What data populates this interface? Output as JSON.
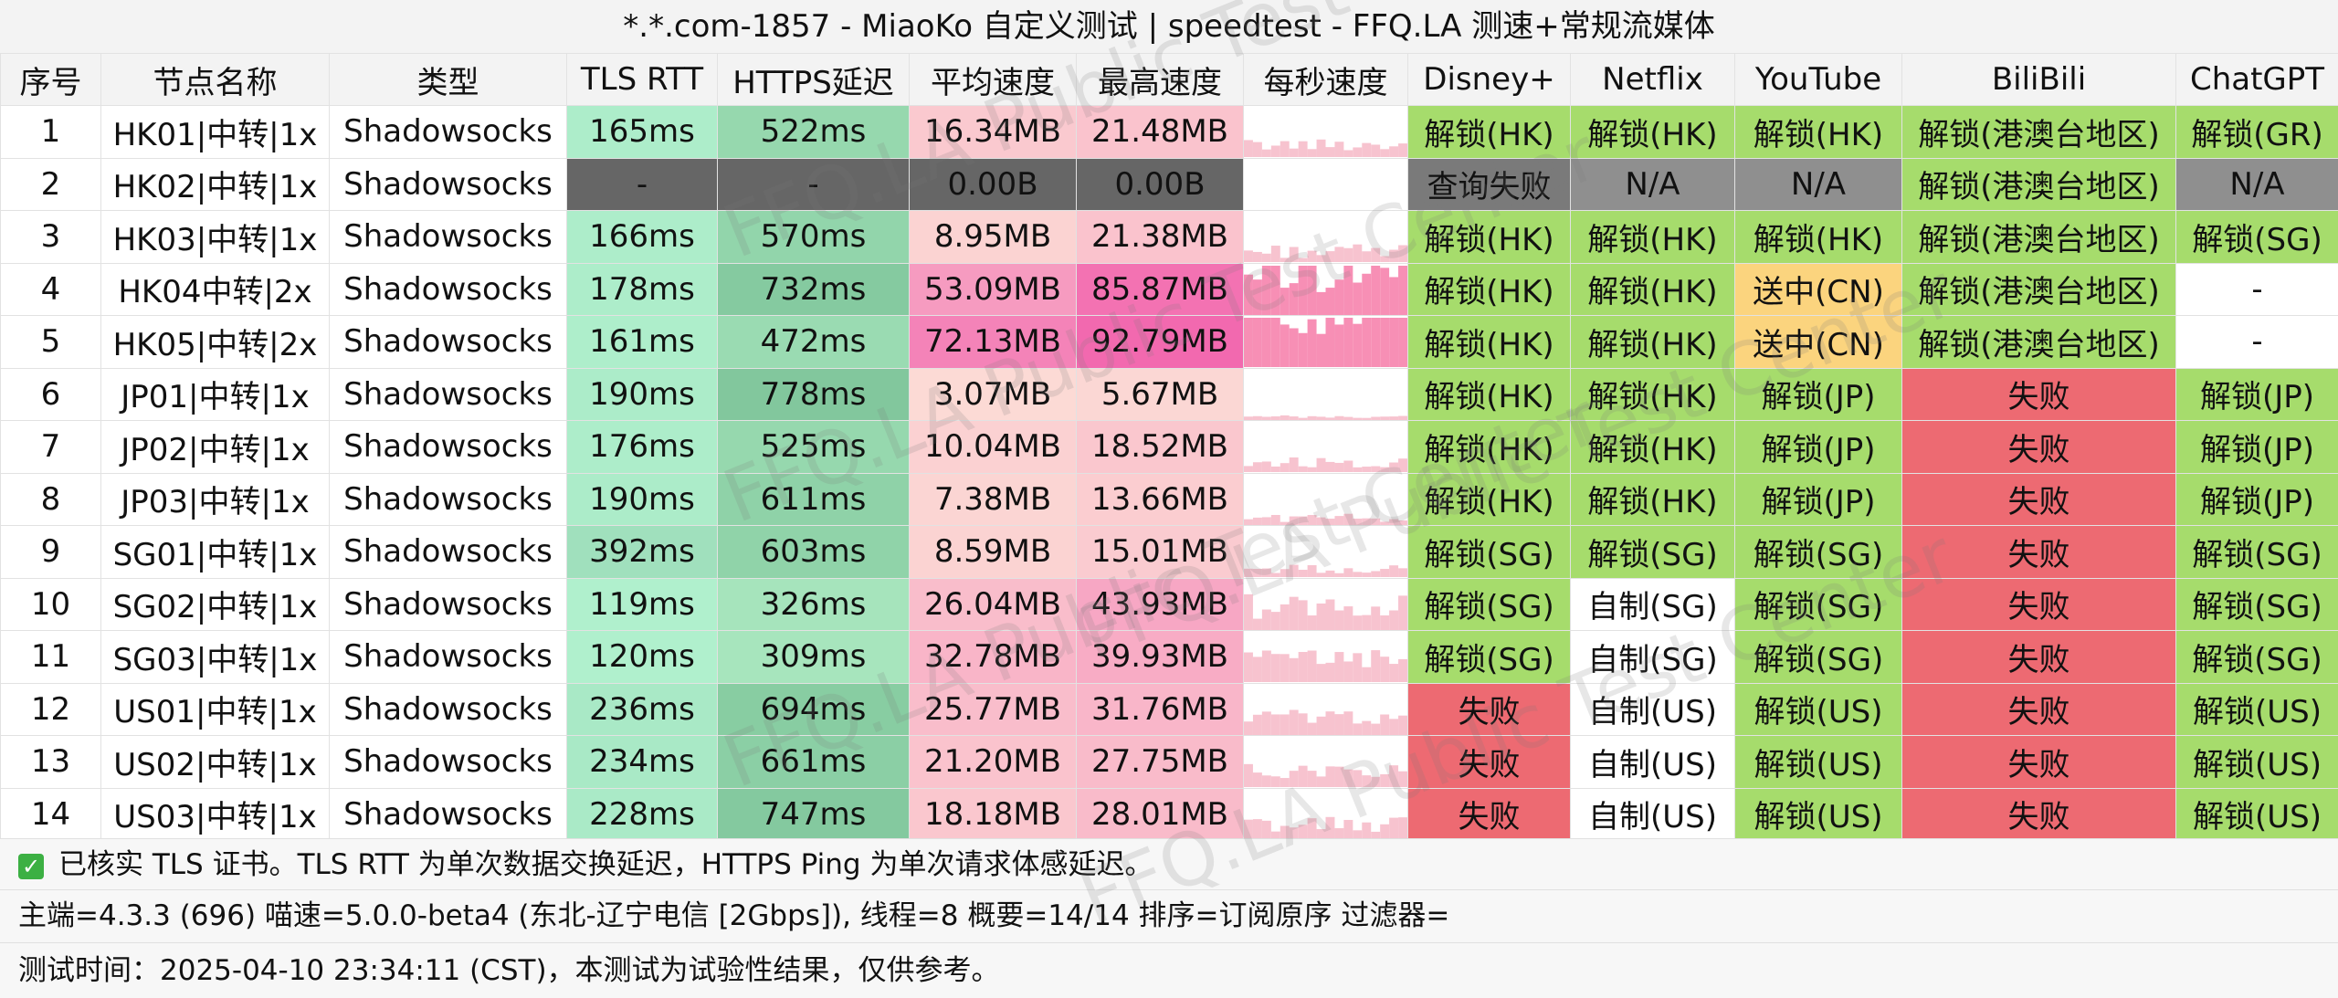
{
  "title": "*.*.com-1857 - MiaoKo 自定义测试 | speedtest - FFQ.LA 测速+常规流媒体",
  "watermark": "FFQ.LA Public Test Center",
  "headers": [
    "序号",
    "节点名称",
    "类型",
    "TLS RTT",
    "HTTPS延迟",
    "平均速度",
    "最高速度",
    "每秒速度",
    "Disney+",
    "Netflix",
    "YouTube",
    "BiliBili",
    "ChatGPT"
  ],
  "rows": [
    {
      "idx": "1",
      "name": "HK01|中转|1x",
      "type": "Shadowsocks",
      "tls": "165ms",
      "https": "522ms",
      "avg": "16.34MB",
      "max": "21.48MB",
      "disney": "解锁(HK)",
      "netflix": "解锁(HK)",
      "youtube": "解锁(HK)",
      "bili": "解锁(港澳台地区)",
      "gpt": "解锁(GR)"
    },
    {
      "idx": "2",
      "name": "HK02|中转|1x",
      "type": "Shadowsocks",
      "tls": "-",
      "https": "-",
      "avg": "0.00B",
      "max": "0.00B",
      "disney": "查询失败",
      "netflix": "N/A",
      "youtube": "N/A",
      "bili": "解锁(港澳台地区)",
      "gpt": "N/A"
    },
    {
      "idx": "3",
      "name": "HK03|中转|1x",
      "type": "Shadowsocks",
      "tls": "166ms",
      "https": "570ms",
      "avg": "8.95MB",
      "max": "21.38MB",
      "disney": "解锁(HK)",
      "netflix": "解锁(HK)",
      "youtube": "解锁(HK)",
      "bili": "解锁(港澳台地区)",
      "gpt": "解锁(SG)"
    },
    {
      "idx": "4",
      "name": "HK04中转|2x",
      "type": "Shadowsocks",
      "tls": "178ms",
      "https": "732ms",
      "avg": "53.09MB",
      "max": "85.87MB",
      "disney": "解锁(HK)",
      "netflix": "解锁(HK)",
      "youtube": "送中(CN)",
      "bili": "解锁(港澳台地区)",
      "gpt": "-"
    },
    {
      "idx": "5",
      "name": "HK05|中转|2x",
      "type": "Shadowsocks",
      "tls": "161ms",
      "https": "472ms",
      "avg": "72.13MB",
      "max": "92.79MB",
      "disney": "解锁(HK)",
      "netflix": "解锁(HK)",
      "youtube": "送中(CN)",
      "bili": "解锁(港澳台地区)",
      "gpt": "-"
    },
    {
      "idx": "6",
      "name": "JP01|中转|1x",
      "type": "Shadowsocks",
      "tls": "190ms",
      "https": "778ms",
      "avg": "3.07MB",
      "max": "5.67MB",
      "disney": "解锁(HK)",
      "netflix": "解锁(HK)",
      "youtube": "解锁(JP)",
      "bili": "失败",
      "gpt": "解锁(JP)"
    },
    {
      "idx": "7",
      "name": "JP02|中转|1x",
      "type": "Shadowsocks",
      "tls": "176ms",
      "https": "525ms",
      "avg": "10.04MB",
      "max": "18.52MB",
      "disney": "解锁(HK)",
      "netflix": "解锁(HK)",
      "youtube": "解锁(JP)",
      "bili": "失败",
      "gpt": "解锁(JP)"
    },
    {
      "idx": "8",
      "name": "JP03|中转|1x",
      "type": "Shadowsocks",
      "tls": "190ms",
      "https": "611ms",
      "avg": "7.38MB",
      "max": "13.66MB",
      "disney": "解锁(HK)",
      "netflix": "解锁(HK)",
      "youtube": "解锁(JP)",
      "bili": "失败",
      "gpt": "解锁(JP)"
    },
    {
      "idx": "9",
      "name": "SG01|中转|1x",
      "type": "Shadowsocks",
      "tls": "392ms",
      "https": "603ms",
      "avg": "8.59MB",
      "max": "15.01MB",
      "disney": "解锁(SG)",
      "netflix": "解锁(SG)",
      "youtube": "解锁(SG)",
      "bili": "失败",
      "gpt": "解锁(SG)"
    },
    {
      "idx": "10",
      "name": "SG02|中转|1x",
      "type": "Shadowsocks",
      "tls": "119ms",
      "https": "326ms",
      "avg": "26.04MB",
      "max": "43.93MB",
      "disney": "解锁(SG)",
      "netflix": "自制(SG)",
      "youtube": "解锁(SG)",
      "bili": "失败",
      "gpt": "解锁(SG)"
    },
    {
      "idx": "11",
      "name": "SG03|中转|1x",
      "type": "Shadowsocks",
      "tls": "120ms",
      "https": "309ms",
      "avg": "32.78MB",
      "max": "39.93MB",
      "disney": "解锁(SG)",
      "netflix": "自制(SG)",
      "youtube": "解锁(SG)",
      "bili": "失败",
      "gpt": "解锁(SG)"
    },
    {
      "idx": "12",
      "name": "US01|中转|1x",
      "type": "Shadowsocks",
      "tls": "236ms",
      "https": "694ms",
      "avg": "25.77MB",
      "max": "31.76MB",
      "disney": "失败",
      "netflix": "自制(US)",
      "youtube": "解锁(US)",
      "bili": "失败",
      "gpt": "解锁(US)"
    },
    {
      "idx": "13",
      "name": "US02|中转|1x",
      "type": "Shadowsocks",
      "tls": "234ms",
      "https": "661ms",
      "avg": "21.20MB",
      "max": "27.75MB",
      "disney": "失败",
      "netflix": "自制(US)",
      "youtube": "解锁(US)",
      "bili": "失败",
      "gpt": "解锁(US)"
    },
    {
      "idx": "14",
      "name": "US03|中转|1x",
      "type": "Shadowsocks",
      "tls": "228ms",
      "https": "747ms",
      "avg": "18.18MB",
      "max": "28.01MB",
      "disney": "失败",
      "netflix": "自制(US)",
      "youtube": "解锁(US)",
      "bili": "失败",
      "gpt": "解锁(US)"
    }
  ],
  "footer": {
    "line1": "已核实 TLS 证书。TLS RTT 为单次数据交换延迟，HTTPS Ping 为单次请求体感延迟。",
    "line2": "主端=4.3.3 (696) 喵速=5.0.0-beta4 (东北-辽宁电信 [2Gbps]), 线程=8 概要=14/14 排序=订阅原序 过滤器=",
    "line3": "测试时间：2025-04-10 23:34:11 (CST)，本测试为试验性结果，仅供参考。"
  },
  "colors": {
    "unlock": "#a6dc6c",
    "fail": "#ed6a72",
    "native": "#ffffff",
    "sent_cn": "#fbd47e",
    "query_fail": "#7a7a7a",
    "na": "#8f8f8f",
    "latency_na": "#666666"
  }
}
